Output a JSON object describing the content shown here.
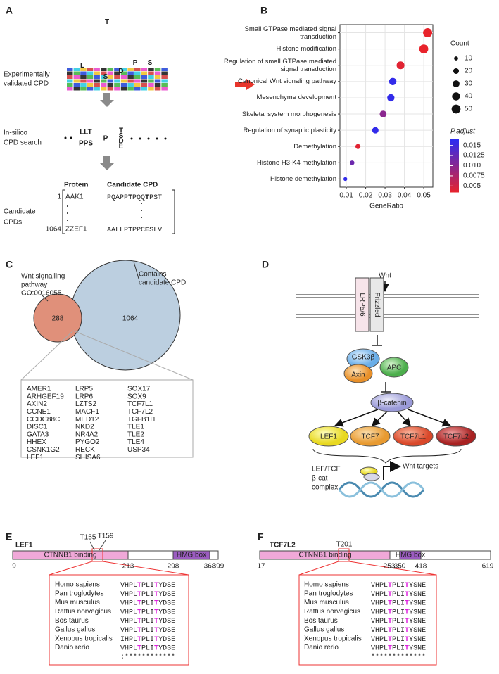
{
  "panel_labels": [
    "A",
    "B",
    "C",
    "D",
    "E",
    "F"
  ],
  "a": {
    "logo": [
      "T",
      "L",
      "S",
      "D",
      "P",
      "S"
    ],
    "experimental": [
      "Experimentally",
      "validated CPD"
    ],
    "insilico": [
      "In-silico",
      "CPD search"
    ],
    "motif": {
      "top": "LLT",
      "bottom": "PPS",
      "center": "P",
      "stack": [
        "T",
        "S",
        "D",
        "E"
      ]
    },
    "candidate": [
      "Candidate",
      "CPDs"
    ],
    "table": {
      "headers": [
        "Protein",
        "Candidate CPD"
      ],
      "rows": [
        {
          "index": 1,
          "protein": "AAK1",
          "cpd": [
            "PQAPP",
            "T",
            "PQQ",
            "T",
            "PST"
          ]
        },
        {
          "index": 1064,
          "protein": "ZZEF1",
          "cpd": [
            "AALLP",
            "T",
            "PPC",
            "E",
            "SLV"
          ]
        }
      ]
    }
  },
  "chart_data": {
    "type": "dot",
    "categories": [
      "Small GTPase mediated signal transduction",
      "Histone modification",
      "Regulation of small GTPase mediated signal transduction",
      "Canonical Wnt signaling pathway",
      "Mesenchyme development",
      "Skeletal system morphogenesis",
      "Regulation of synaptic plasticity",
      "Demethylation",
      "Histone H3-K4 methylation",
      "Histone demethylation"
    ],
    "values": [
      0.052,
      0.05,
      0.038,
      0.034,
      0.033,
      0.029,
      0.025,
      0.016,
      0.013,
      0.0095
    ],
    "sizes": [
      52,
      50,
      38,
      34,
      33,
      29,
      25,
      16,
      13,
      9
    ],
    "padjust": [
      0.003,
      0.003,
      0.004,
      0.016,
      0.016,
      0.01,
      0.016,
      0.004,
      0.012,
      0.016
    ],
    "xlabel": "GeneRatio",
    "xlim": [
      0.0067,
      0.0547
    ],
    "xticks": [
      0.01,
      0.02,
      0.03,
      0.04,
      0.05
    ],
    "grid": true,
    "size_title": "Count",
    "size_ticks": [
      10,
      20,
      30,
      40,
      50
    ],
    "color_title": "P.adjust",
    "color_ticks": [
      0.015,
      0.0125,
      {
        "value": 0.01,
        "label": "0.010"
      },
      0.0075,
      0.005
    ],
    "clim": [
      0.0035,
      0.0165
    ],
    "colors": [
      "#e8232b",
      "#2b2bf2"
    ]
  },
  "c": {
    "go_label": [
      "Wnt signalling",
      "pathway",
      "GO:0016055"
    ],
    "cpd_label": [
      "Contains",
      "candidate CPD"
    ],
    "overlap": 288,
    "total": 1064,
    "genes": [
      [
        "AMER1",
        "ARHGEF19",
        "AXIN2",
        "CCNE1",
        "CCDC88C",
        "DISC1",
        "GATA3",
        "HHEX",
        "CSNK1G2",
        "LEF1"
      ],
      [
        "LRP5",
        "LRP6",
        "LZTS2",
        "MACF1",
        "MED12",
        "NKD2",
        "NR4A2",
        "PYGO2",
        "RECK",
        "SHISA6"
      ],
      [
        "SOX17",
        "SOX9",
        "TCF7L1",
        "TCF7L2",
        "TGFB1I1",
        "TLE1",
        "TLE2",
        "TLE4",
        "USP34"
      ]
    ]
  },
  "d": {
    "wnt": "Wnt",
    "receptors": [
      "LRP5/6",
      "Frizzled"
    ],
    "destruction": [
      "GSK3β",
      "Axin",
      "APC"
    ],
    "catenin": "β-catenin",
    "factors": [
      "LEF1",
      "TCF7",
      "TCF7L1",
      "TCF7L2"
    ],
    "complex_label": [
      "LEF/TCF",
      "β-cat",
      "complex"
    ],
    "targets": "Wnt targets"
  },
  "e": {
    "protein": "LEF1",
    "sites": [
      "T155",
      "T159"
    ],
    "domains": [
      "CTNNB1 binding",
      "HMG box"
    ],
    "positions": [
      9,
      213,
      298,
      368,
      399
    ],
    "species": [
      "Homo sapiens",
      "Pan troglodytes",
      "Mus musculus",
      "Rattus norvegicus",
      "Bos taurus",
      "Gallus gallus",
      "Xenopus tropicalis",
      "Danio rerio"
    ],
    "alignment": [
      [
        "VHPL",
        "T",
        "PLI",
        "T",
        "YDSE"
      ],
      [
        "VHPL",
        "T",
        "PLI",
        "T",
        "YDSE"
      ],
      [
        "VHPL",
        "T",
        "PLI",
        "T",
        "YDSE"
      ],
      [
        "VHPL",
        "T",
        "PLI",
        "T",
        "YDSE"
      ],
      [
        "VHPL",
        "T",
        "PLI",
        "T",
        "YDSE"
      ],
      [
        "VHPL",
        "T",
        "PLI",
        "T",
        "YDSE"
      ],
      [
        "IHPL",
        "T",
        "PLI",
        "T",
        "YDSE"
      ],
      [
        "VHPL",
        "T",
        "PLI",
        "T",
        "YDSE"
      ]
    ],
    "conservation": ":************"
  },
  "f": {
    "protein": "TCF7L2",
    "sites": [
      "T201"
    ],
    "domains": [
      "CTNNB1 binding",
      "HMG box"
    ],
    "positions": [
      17,
      253,
      350,
      418,
      619
    ],
    "species": [
      "Homo sapiens",
      "Pan troglodytes",
      "Mus musculus",
      "Rattus norvegicus",
      "Bos taurus",
      "Gallus gallus",
      "Xenopus tropicalis",
      "Danio rerio"
    ],
    "alignment": [
      [
        "VHPL",
        "T",
        "PLI",
        "T",
        "YSNE"
      ],
      [
        "VHPL",
        "T",
        "PLI",
        "T",
        "YSNE"
      ],
      [
        "VHPL",
        "T",
        "PLI",
        "T",
        "YSNE"
      ],
      [
        "VHPL",
        "T",
        "PLI",
        "T",
        "YSNE"
      ],
      [
        "VHPL",
        "T",
        "PLI",
        "T",
        "YSNE"
      ],
      [
        "VHPL",
        "T",
        "PLI",
        "T",
        "YSNE"
      ],
      [
        "VHPL",
        "T",
        "PLI",
        "T",
        "YSNE"
      ],
      [
        "VHPL",
        "T",
        "PLI",
        "T",
        "YSNE"
      ]
    ],
    "conservation": "*************"
  }
}
